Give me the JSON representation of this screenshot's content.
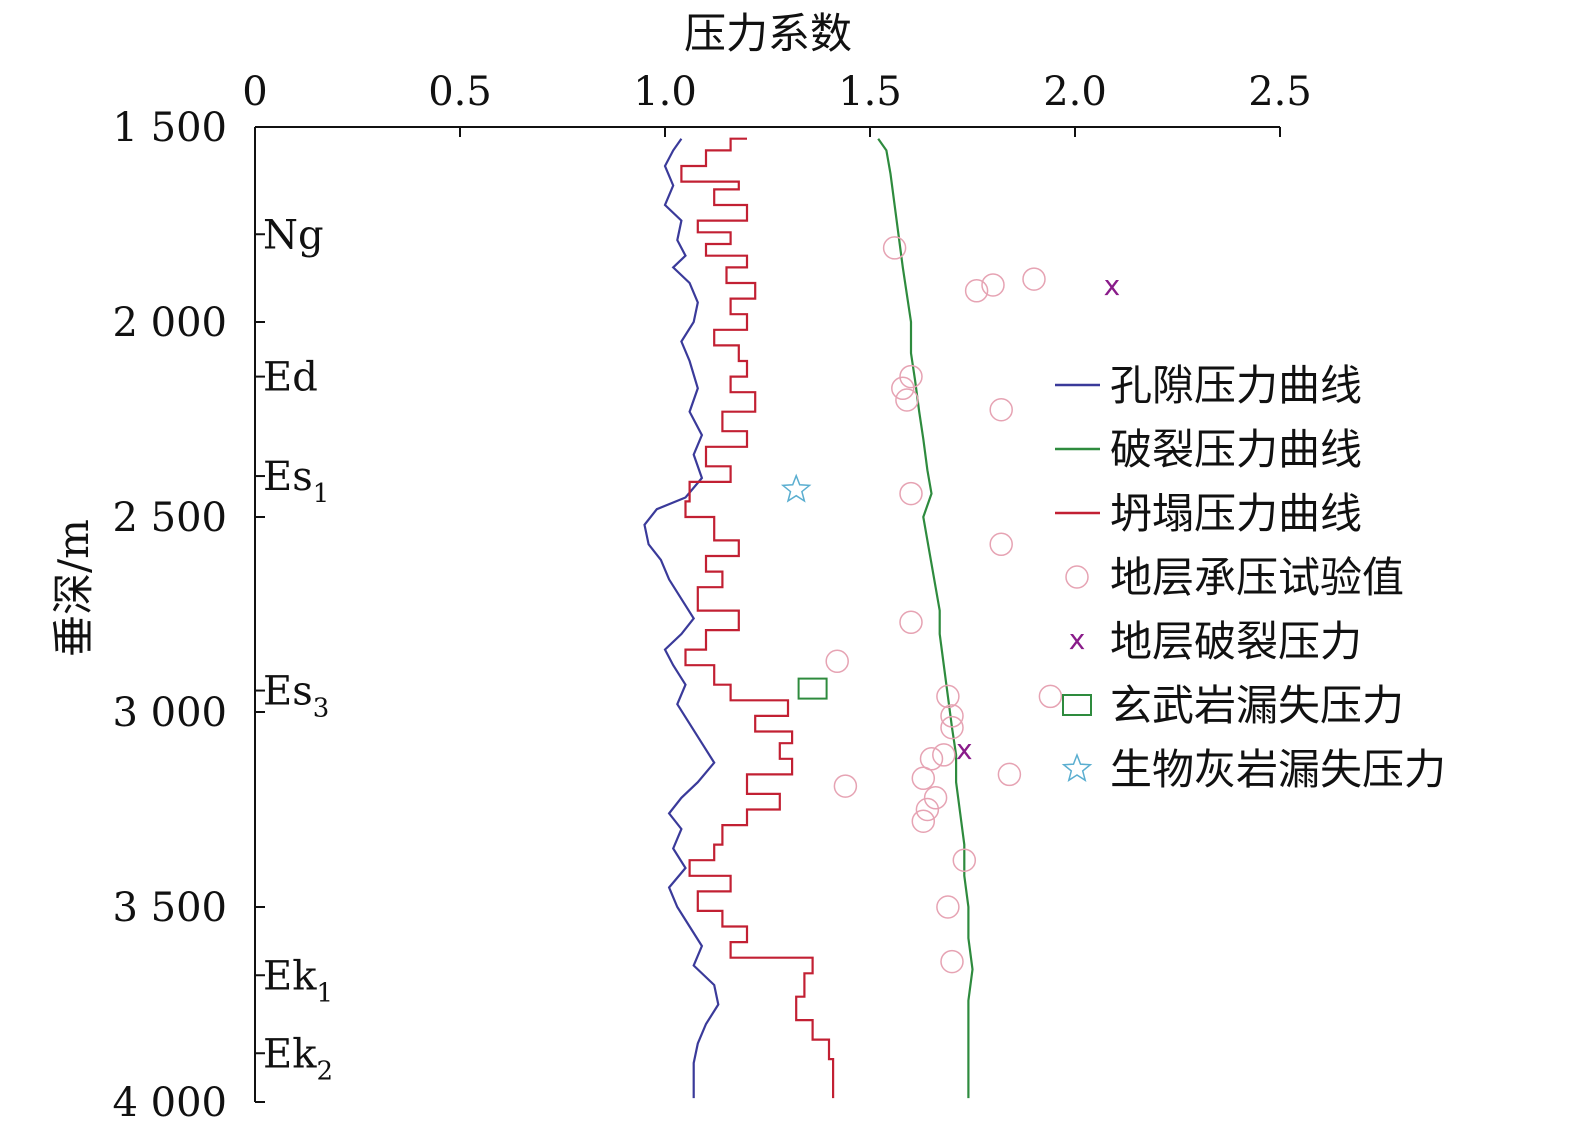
{
  "chart_data": {
    "type": "line",
    "xlabel": "压力系数",
    "ylabel": "垂深/m",
    "xlim": [
      0,
      2.5
    ],
    "ylim": [
      1500,
      4000
    ],
    "x_axis_position": "top",
    "y_axis_inverted": true,
    "x_ticks": [
      0,
      0.5,
      1.0,
      1.5,
      2.0,
      2.5
    ],
    "x_tick_labels": [
      "0",
      "0.5",
      "1.0",
      "1.5",
      "2.0",
      "2.5"
    ],
    "y_ticks": [
      1500,
      2000,
      2500,
      3000,
      3500,
      4000
    ],
    "y_tick_labels": [
      "1 500",
      "2 000",
      "2 500",
      "3 000",
      "3 500",
      "4 000"
    ],
    "grid": false,
    "legend_position": "right",
    "formations": [
      {
        "main": "Ng",
        "sub": "",
        "depth": 1775
      },
      {
        "main": "Ed",
        "sub": "",
        "depth": 2140
      },
      {
        "main": "Es",
        "sub": "1",
        "depth": 2395
      },
      {
        "main": "Es",
        "sub": "3",
        "depth": 2945
      },
      {
        "main": "Ek",
        "sub": "1",
        "depth": 3675
      },
      {
        "main": "Ek",
        "sub": "2",
        "depth": 3875
      }
    ],
    "series": [
      {
        "name": "孔隙压力曲线",
        "kind": "line",
        "color": "#3a3a9a",
        "points": [
          [
            1.04,
            1530
          ],
          [
            1.02,
            1560
          ],
          [
            1.0,
            1600
          ],
          [
            1.02,
            1650
          ],
          [
            1.0,
            1700
          ],
          [
            1.04,
            1740
          ],
          [
            1.03,
            1790
          ],
          [
            1.05,
            1830
          ],
          [
            1.02,
            1860
          ],
          [
            1.06,
            1900
          ],
          [
            1.08,
            1950
          ],
          [
            1.07,
            2000
          ],
          [
            1.04,
            2050
          ],
          [
            1.06,
            2100
          ],
          [
            1.08,
            2170
          ],
          [
            1.06,
            2230
          ],
          [
            1.09,
            2290
          ],
          [
            1.07,
            2340
          ],
          [
            1.09,
            2400
          ],
          [
            1.05,
            2450
          ],
          [
            0.98,
            2480
          ],
          [
            0.95,
            2520
          ],
          [
            0.96,
            2570
          ],
          [
            0.99,
            2610
          ],
          [
            1.01,
            2660
          ],
          [
            1.04,
            2710
          ],
          [
            1.07,
            2760
          ],
          [
            1.04,
            2800
          ],
          [
            1.0,
            2840
          ],
          [
            1.02,
            2880
          ],
          [
            1.05,
            2930
          ],
          [
            1.03,
            2980
          ],
          [
            1.06,
            3030
          ],
          [
            1.09,
            3080
          ],
          [
            1.12,
            3130
          ],
          [
            1.08,
            3180
          ],
          [
            1.04,
            3220
          ],
          [
            1.01,
            3260
          ],
          [
            1.04,
            3300
          ],
          [
            1.02,
            3350
          ],
          [
            1.05,
            3400
          ],
          [
            1.01,
            3450
          ],
          [
            1.03,
            3500
          ],
          [
            1.06,
            3550
          ],
          [
            1.09,
            3600
          ],
          [
            1.07,
            3650
          ],
          [
            1.12,
            3700
          ],
          [
            1.13,
            3750
          ],
          [
            1.1,
            3800
          ],
          [
            1.08,
            3850
          ],
          [
            1.07,
            3900
          ],
          [
            1.07,
            3960
          ],
          [
            1.07,
            3990
          ]
        ]
      },
      {
        "name": "破裂压力曲线",
        "kind": "line",
        "color": "#2e8b3e",
        "points": [
          [
            1.52,
            1530
          ],
          [
            1.54,
            1560
          ],
          [
            1.55,
            1620
          ],
          [
            1.56,
            1700
          ],
          [
            1.57,
            1780
          ],
          [
            1.58,
            1860
          ],
          [
            1.59,
            1930
          ],
          [
            1.6,
            2000
          ],
          [
            1.6,
            2080
          ],
          [
            1.61,
            2150
          ],
          [
            1.62,
            2230
          ],
          [
            1.63,
            2300
          ],
          [
            1.64,
            2380
          ],
          [
            1.65,
            2440
          ],
          [
            1.63,
            2500
          ],
          [
            1.64,
            2560
          ],
          [
            1.65,
            2620
          ],
          [
            1.66,
            2680
          ],
          [
            1.67,
            2740
          ],
          [
            1.67,
            2800
          ],
          [
            1.68,
            2880
          ],
          [
            1.69,
            2960
          ],
          [
            1.7,
            3040
          ],
          [
            1.71,
            3110
          ],
          [
            1.71,
            3180
          ],
          [
            1.72,
            3260
          ],
          [
            1.73,
            3340
          ],
          [
            1.73,
            3420
          ],
          [
            1.74,
            3500
          ],
          [
            1.74,
            3580
          ],
          [
            1.75,
            3660
          ],
          [
            1.74,
            3740
          ],
          [
            1.74,
            3820
          ],
          [
            1.74,
            3900
          ],
          [
            1.74,
            3990
          ]
        ]
      },
      {
        "name": "坍塌压力曲线",
        "kind": "step",
        "color": "#c22033",
        "points": [
          [
            1.2,
            1530
          ],
          [
            1.16,
            1560
          ],
          [
            1.1,
            1600
          ],
          [
            1.04,
            1640
          ],
          [
            1.18,
            1660
          ],
          [
            1.12,
            1700
          ],
          [
            1.2,
            1740
          ],
          [
            1.08,
            1770
          ],
          [
            1.16,
            1800
          ],
          [
            1.1,
            1830
          ],
          [
            1.2,
            1860
          ],
          [
            1.15,
            1900
          ],
          [
            1.22,
            1940
          ],
          [
            1.16,
            1980
          ],
          [
            1.2,
            2020
          ],
          [
            1.12,
            2060
          ],
          [
            1.18,
            2100
          ],
          [
            1.2,
            2140
          ],
          [
            1.16,
            2180
          ],
          [
            1.22,
            2230
          ],
          [
            1.14,
            2280
          ],
          [
            1.2,
            2320
          ],
          [
            1.1,
            2370
          ],
          [
            1.16,
            2410
          ],
          [
            1.06,
            2460
          ],
          [
            1.05,
            2500
          ],
          [
            1.12,
            2560
          ],
          [
            1.18,
            2600
          ],
          [
            1.1,
            2640
          ],
          [
            1.14,
            2680
          ],
          [
            1.08,
            2740
          ],
          [
            1.18,
            2790
          ],
          [
            1.1,
            2840
          ],
          [
            1.05,
            2880
          ],
          [
            1.12,
            2930
          ],
          [
            1.16,
            2970
          ],
          [
            1.3,
            3010
          ],
          [
            1.22,
            3050
          ],
          [
            1.31,
            3080
          ],
          [
            1.28,
            3120
          ],
          [
            1.31,
            3160
          ],
          [
            1.2,
            3210
          ],
          [
            1.28,
            3250
          ],
          [
            1.2,
            3290
          ],
          [
            1.14,
            3340
          ],
          [
            1.12,
            3380
          ],
          [
            1.06,
            3420
          ],
          [
            1.16,
            3460
          ],
          [
            1.08,
            3510
          ],
          [
            1.14,
            3550
          ],
          [
            1.2,
            3590
          ],
          [
            1.16,
            3630
          ],
          [
            1.36,
            3670
          ],
          [
            1.34,
            3730
          ],
          [
            1.32,
            3790
          ],
          [
            1.36,
            3840
          ],
          [
            1.4,
            3890
          ],
          [
            1.41,
            3930
          ],
          [
            1.41,
            3990
          ]
        ]
      },
      {
        "name": "地层承压试验值",
        "kind": "scatter",
        "marker": "circle",
        "color": "#e6a3b3",
        "points": [
          [
            1.56,
            1810
          ],
          [
            1.76,
            1920
          ],
          [
            1.8,
            1905
          ],
          [
            1.9,
            1890
          ],
          [
            1.6,
            2140
          ],
          [
            1.58,
            2170
          ],
          [
            1.59,
            2200
          ],
          [
            1.82,
            2225
          ],
          [
            1.6,
            2440
          ],
          [
            1.82,
            2570
          ],
          [
            1.6,
            2770
          ],
          [
            1.42,
            2870
          ],
          [
            1.69,
            2960
          ],
          [
            1.7,
            3010
          ],
          [
            1.7,
            3040
          ],
          [
            1.94,
            2960
          ],
          [
            1.68,
            3110
          ],
          [
            1.65,
            3120
          ],
          [
            1.63,
            3170
          ],
          [
            1.84,
            3160
          ],
          [
            1.44,
            3190
          ],
          [
            1.66,
            3220
          ],
          [
            1.64,
            3250
          ],
          [
            1.63,
            3280
          ],
          [
            1.73,
            3380
          ],
          [
            1.69,
            3500
          ],
          [
            1.7,
            3640
          ]
        ]
      },
      {
        "name": "地层破裂压力",
        "kind": "scatter",
        "marker": "x",
        "color": "#8a1c8a",
        "points": [
          [
            2.09,
            1910
          ],
          [
            1.73,
            3100
          ]
        ]
      },
      {
        "name": "玄武岩漏失压力",
        "kind": "scatter",
        "marker": "square",
        "color": "#2e8b3e",
        "points": [
          [
            1.36,
            2940
          ]
        ]
      },
      {
        "name": "生物灰岩漏失压力",
        "kind": "scatter",
        "marker": "star",
        "color": "#5aaed0",
        "points": [
          [
            1.32,
            2430
          ]
        ]
      }
    ]
  }
}
